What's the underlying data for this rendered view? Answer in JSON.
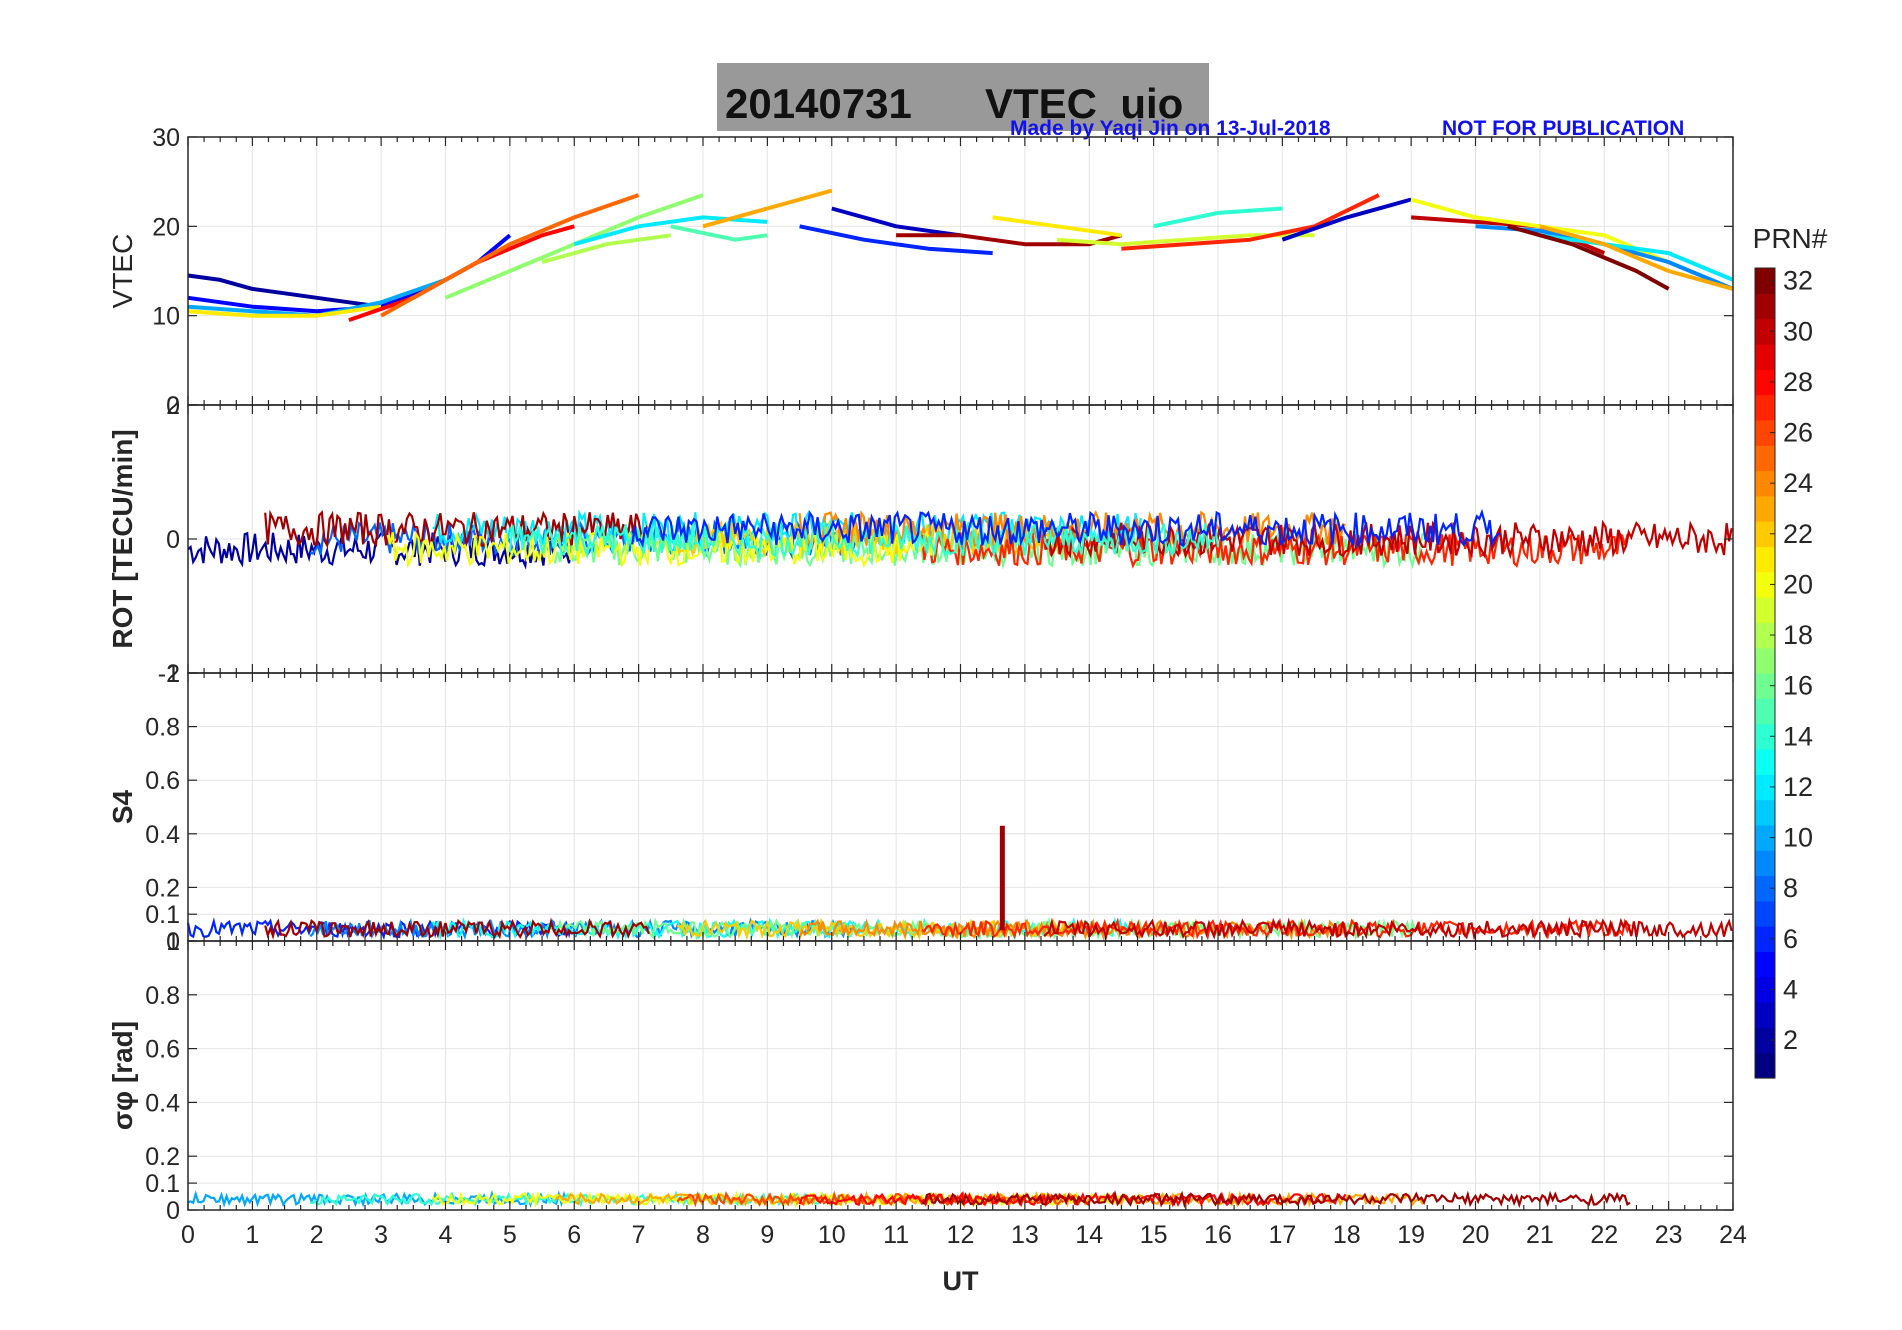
{
  "title": {
    "date": "20140731",
    "name": "VTEC  uio"
  },
  "credit": "Made by Yaqi Jin on 13-Jul-2018",
  "notice": "NOT FOR PUBLICATION",
  "colors": {
    "title_bg": "#999999",
    "credit": "#1111ee",
    "grid": "#e6e6e6",
    "axis": "#262626"
  },
  "x_axis": {
    "label": "UT",
    "ticks": [
      "0",
      "1",
      "2",
      "3",
      "4",
      "5",
      "6",
      "7",
      "8",
      "9",
      "10",
      "11",
      "12",
      "13",
      "14",
      "15",
      "16",
      "17",
      "18",
      "19",
      "20",
      "21",
      "22",
      "23",
      "24"
    ]
  },
  "colorbar": {
    "title": "PRN#",
    "colormap": "jet",
    "ticks": [
      "2",
      "4",
      "6",
      "8",
      "10",
      "12",
      "14",
      "16",
      "18",
      "20",
      "22",
      "24",
      "26",
      "28",
      "30",
      "32"
    ],
    "range": [
      1,
      32
    ]
  },
  "chart_data": [
    {
      "type": "line",
      "panel": "VTEC",
      "ylabel": "VTEC",
      "xlim": [
        0,
        24
      ],
      "ylim": [
        0,
        30
      ],
      "yticks": [
        "0",
        "10",
        "20",
        "30"
      ],
      "series": [
        {
          "prn": 2,
          "x": [
            0,
            0.5,
            1,
            1.5,
            2,
            2.5,
            3
          ],
          "y": [
            14.5,
            14,
            13,
            12.5,
            12,
            11.5,
            11
          ]
        },
        {
          "prn": 5,
          "x": [
            0,
            1,
            2,
            3,
            4,
            4.5,
            5
          ],
          "y": [
            12,
            11,
            10.5,
            11,
            14,
            16,
            19
          ]
        },
        {
          "prn": 10,
          "x": [
            0,
            1,
            2,
            3,
            4
          ],
          "y": [
            11,
            10.5,
            10,
            11.5,
            14
          ]
        },
        {
          "prn": 21,
          "x": [
            0,
            1,
            2,
            3
          ],
          "y": [
            10.5,
            10,
            10,
            11
          ]
        },
        {
          "prn": 28,
          "x": [
            2.5,
            3.5,
            4.5,
            5.5,
            6
          ],
          "y": [
            9.5,
            12,
            16,
            19,
            20
          ]
        },
        {
          "prn": 25,
          "x": [
            3,
            4,
            5,
            6,
            7
          ],
          "y": [
            10,
            14,
            18,
            21,
            23.5
          ]
        },
        {
          "prn": 17,
          "x": [
            4,
            5,
            6,
            7,
            8
          ],
          "y": [
            12,
            15,
            18,
            21,
            23.5
          ]
        },
        {
          "prn": 18,
          "x": [
            5.5,
            6.5,
            7.5
          ],
          "y": [
            16,
            18,
            19
          ]
        },
        {
          "prn": 12,
          "x": [
            6,
            7,
            8,
            9
          ],
          "y": [
            18,
            20,
            21,
            20.5
          ]
        },
        {
          "prn": 23,
          "x": [
            8,
            9,
            10
          ],
          "y": [
            20,
            22,
            24
          ]
        },
        {
          "prn": 15,
          "x": [
            7.5,
            8.5,
            9
          ],
          "y": [
            20,
            18.5,
            19
          ]
        },
        {
          "prn": 6,
          "x": [
            9.5,
            10.5,
            11.5,
            12.5
          ],
          "y": [
            20,
            18.5,
            17.5,
            17
          ]
        },
        {
          "prn": 3,
          "x": [
            10,
            11,
            12
          ],
          "y": [
            22,
            20,
            19
          ]
        },
        {
          "prn": 31,
          "x": [
            11,
            12,
            13,
            14,
            14.5
          ],
          "y": [
            19,
            19,
            18,
            18,
            19
          ]
        },
        {
          "prn": 21,
          "x": [
            12.5,
            13.5,
            14.5
          ],
          "y": [
            21,
            20,
            19
          ]
        },
        {
          "prn": 19,
          "x": [
            13.5,
            14.5,
            15.5,
            16.5,
            17.5
          ],
          "y": [
            18.5,
            18,
            18.5,
            19,
            19
          ]
        },
        {
          "prn": 27,
          "x": [
            14.5,
            15.5,
            16.5,
            17.5,
            18.5
          ],
          "y": [
            17.5,
            18,
            18.5,
            20,
            23.5
          ]
        },
        {
          "prn": 14,
          "x": [
            15,
            16,
            17
          ],
          "y": [
            20,
            21.5,
            22
          ]
        },
        {
          "prn": 3,
          "x": [
            17,
            18,
            19
          ],
          "y": [
            18.5,
            21,
            23
          ]
        },
        {
          "prn": 30,
          "x": [
            19,
            20,
            21,
            22
          ],
          "y": [
            21,
            20.5,
            20,
            17
          ]
        },
        {
          "prn": 20,
          "x": [
            19,
            20,
            21,
            22,
            23,
            24
          ],
          "y": [
            23,
            21,
            20,
            19,
            16,
            13
          ]
        },
        {
          "prn": 9,
          "x": [
            20,
            21,
            22,
            23,
            24
          ],
          "y": [
            20,
            19.5,
            18,
            16,
            13
          ]
        },
        {
          "prn": 12,
          "x": [
            21,
            22,
            23,
            24
          ],
          "y": [
            19,
            18,
            17,
            14
          ]
        },
        {
          "prn": 32,
          "x": [
            20.5,
            21.5,
            22.5,
            23
          ],
          "y": [
            20,
            18,
            15,
            13
          ]
        },
        {
          "prn": 23,
          "x": [
            21,
            22,
            23,
            24
          ],
          "y": [
            20,
            18,
            15,
            13
          ]
        }
      ]
    },
    {
      "type": "line",
      "panel": "ROT",
      "ylabel": "ROT [TECU/min]",
      "xlim": [
        0,
        24
      ],
      "ylim": [
        -2,
        2
      ],
      "yticks": [
        "-2",
        "0",
        "2"
      ],
      "note": "noisy traces concentrated between about -0.5 and 0.6 TECU/min"
    },
    {
      "type": "line",
      "panel": "S4",
      "ylabel": "S4",
      "xlim": [
        0,
        24
      ],
      "ylim": [
        0,
        1
      ],
      "yticks": [
        "0",
        "0.1",
        "0.2",
        "0.4",
        "0.6",
        "0.8",
        "1"
      ],
      "peak": {
        "prn": 31,
        "x": 12.65,
        "y": 0.43
      }
    },
    {
      "type": "line",
      "panel": "SigmaPhi",
      "ylabel": "σφ [rad]",
      "xlim": [
        0,
        24
      ],
      "ylim": [
        0,
        1
      ],
      "yticks": [
        "0",
        "0.1",
        "0.2",
        "0.4",
        "0.6",
        "0.8",
        "1"
      ]
    }
  ]
}
